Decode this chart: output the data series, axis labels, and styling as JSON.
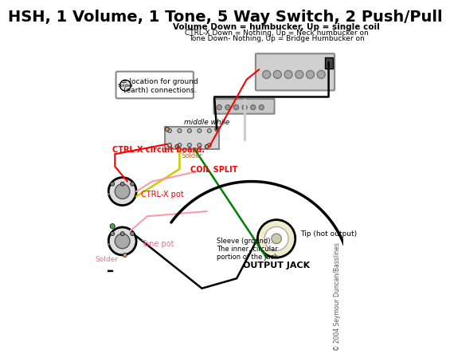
{
  "title": "HSH, 1 Volume, 1 Tone, 5 Way Switch, 2 Push/Pull",
  "subtitle_line1": "Volume Down = humbucker, Up = single coil",
  "subtitle_line2": "CTRL-X Down = Nothing, Up = Neck humbucker on",
  "subtitle_line3": "Tone Down- Nothing, Up = Bridge Humbucker on",
  "bg_color": "#ffffff",
  "title_fontsize": 14,
  "sub_fontsize": 7.5,
  "copyright": "© 2004 Seymour Duncan/Basslines",
  "label_ctrl_x_board": "CTRL-X circuit board.",
  "label_ctrl_x_pot": "CTRL-X pot",
  "label_tone_pot": "Tone pot",
  "label_coil_split": "COIL SPLIT",
  "label_middle_while": "middle while",
  "label_output_jack": "OUTPUT JACK",
  "label_tip": "Tip (hot output)",
  "label_sleeve": "Sleeve (ground).\nThe inner, circular\nportion of the jack",
  "label_solder_box": "= location for ground\n(earth) connections.",
  "solder_label": "Solder"
}
